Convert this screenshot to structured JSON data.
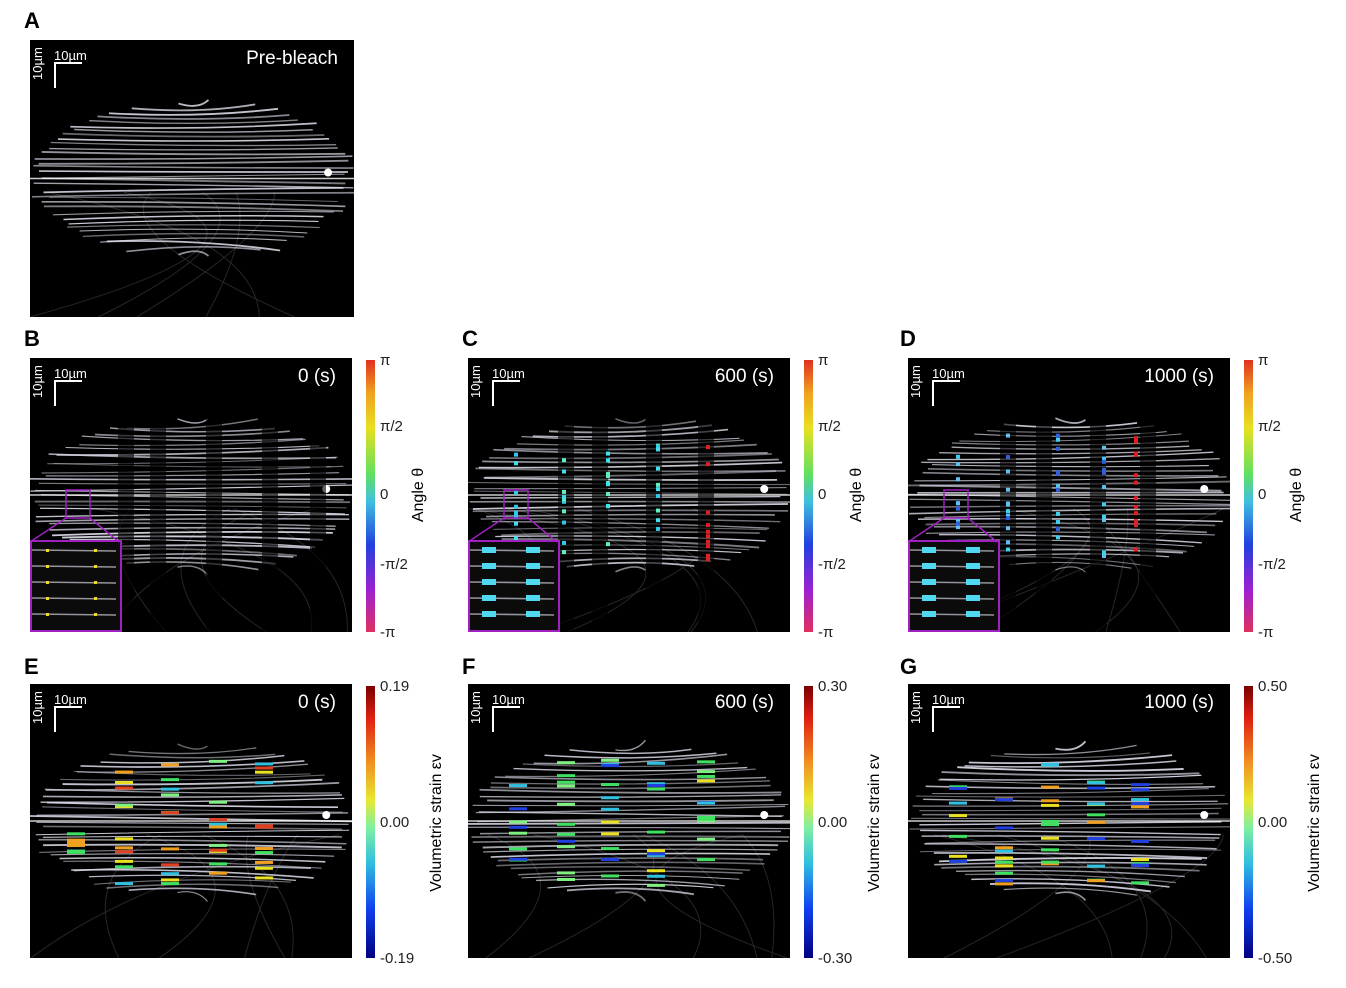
{
  "panels": {
    "A": {
      "letter": "A",
      "time": "Pre-bleach",
      "scale": "10µm"
    },
    "B": {
      "letter": "B",
      "time": "0 (s)",
      "scale": "10µm"
    },
    "C": {
      "letter": "C",
      "time": "600 (s)",
      "scale": "10µm"
    },
    "D": {
      "letter": "D",
      "time": "1000 (s)",
      "scale": "10µm"
    },
    "E": {
      "letter": "E",
      "time": "0 (s)",
      "scale": "10µm"
    },
    "F": {
      "letter": "F",
      "time": "600 (s)",
      "scale": "10µm"
    },
    "G": {
      "letter": "G",
      "time": "1000 (s)",
      "scale": "10µm"
    }
  },
  "angle_bar": {
    "title": "Angle θ",
    "ticks": [
      "π",
      "π/2",
      "0",
      "-π/2",
      "-π"
    ]
  },
  "strain_bars": [
    {
      "title": "Volumetric strain εv",
      "max": "0.19",
      "mid": "0.00",
      "min": "-0.19"
    },
    {
      "title": "Volumetric strain εv",
      "max": "0.30",
      "mid": "0.00",
      "min": "-0.30"
    },
    {
      "title": "Volumetric strain εv",
      "max": "0.50",
      "mid": "0.00",
      "min": "-0.50"
    }
  ],
  "colors": {
    "inset_border": "#a020c0",
    "fiber": "#d8d8e6"
  }
}
